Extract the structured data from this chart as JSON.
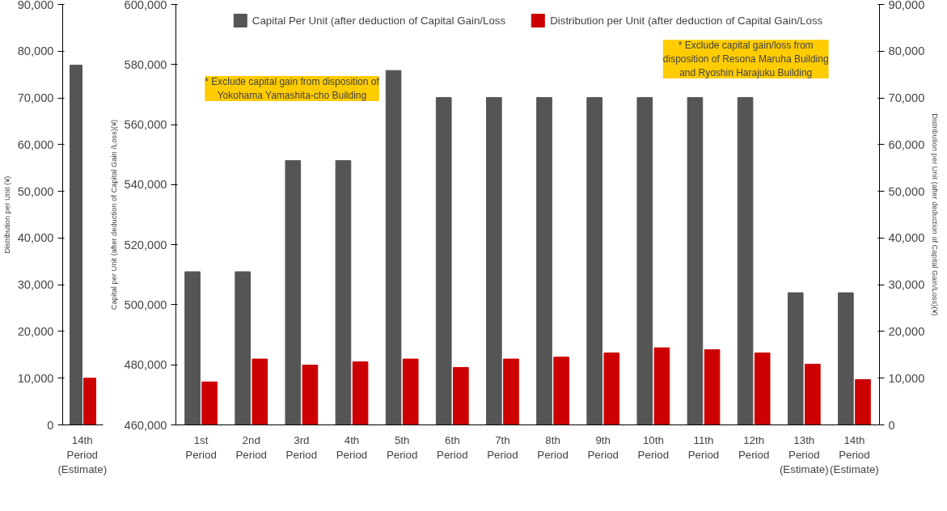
{
  "chart_data": [
    {
      "type": "bar",
      "ylabel": "Distribution per Unit (¥)",
      "categories": [
        "14th\nPeriod\n(Estimate)"
      ],
      "series": [
        {
          "color": "#555555",
          "values": [
            77000
          ]
        },
        {
          "color": "#cc0000",
          "values": [
            10000
          ]
        }
      ],
      "ylim": [
        0,
        90000
      ],
      "yticks": [
        {
          "value": 0,
          "label": "0"
        },
        {
          "value": 10000,
          "label": "10,000"
        },
        {
          "value": 20000,
          "label": "20,000"
        },
        {
          "value": 30000,
          "label": "30,000"
        },
        {
          "value": 40000,
          "label": "40,000"
        },
        {
          "value": 50000,
          "label": "50,000"
        },
        {
          "value": 60000,
          "label": "60,000"
        },
        {
          "value": 70000,
          "label": "70,000"
        },
        {
          "value": 80000,
          "label": "80,000"
        },
        {
          "value": 90000,
          "label": "90,000"
        }
      ],
      "grid": false,
      "legend": false
    },
    {
      "type": "bar",
      "ylabel": "Capital per Unit (after deduction of Capital Gain /Loss)(¥)",
      "y2label": "Distribution per Unit (after deduction of Capital Gain/Loss)(¥)",
      "categories": [
        "1st\nPeriod",
        "2nd\nPeriod",
        "3rd\nPeriod",
        "4th\nPeriod",
        "5th\nPeriod",
        "6th\nPeriod",
        "7th\nPeriod",
        "8th\nPeriod",
        "9th\nPeriod",
        "10th\nPeriod",
        "11th\nPeriod",
        "12th\nPeriod",
        "13th\nPeriod\n(Estimate)",
        "14th\nPeriod\n(Estimate)"
      ],
      "series": [
        {
          "name": "Capital Per Unit (after deduction of Capital Gain/Loss",
          "color": "#555555",
          "values": [
            511000,
            511000,
            548000,
            548000,
            578000,
            569000,
            569000,
            569000,
            569000,
            569000,
            569000,
            569000,
            504000,
            504000
          ]
        },
        {
          "name": "Distribution per Unit (after deduction of Capital Gain/Loss",
          "color": "#cc0000",
          "axis": "y2",
          "values": [
            9200,
            14100,
            12800,
            13500,
            14100,
            12300,
            14100,
            14500,
            15400,
            16500,
            16100,
            15400,
            13000,
            9700
          ]
        }
      ],
      "ylim": [
        460000,
        600000
      ],
      "yticks": [
        {
          "value": 460000,
          "label": "460,000"
        },
        {
          "value": 480000,
          "label": "480,000"
        },
        {
          "value": 500000,
          "label": "500,000"
        },
        {
          "value": 520000,
          "label": "520,000"
        },
        {
          "value": 540000,
          "label": "540,000"
        },
        {
          "value": 560000,
          "label": "560,000"
        },
        {
          "value": 580000,
          "label": "580,000"
        },
        {
          "value": 600000,
          "label": "600,000"
        }
      ],
      "y2lim": [
        0,
        90000
      ],
      "y2ticks": [
        {
          "value": 0,
          "label": "0"
        },
        {
          "value": 10000,
          "label": "10,000"
        },
        {
          "value": 20000,
          "label": "20,000"
        },
        {
          "value": 30000,
          "label": "30,000"
        },
        {
          "value": 40000,
          "label": "40,000"
        },
        {
          "value": 50000,
          "label": "50,000"
        },
        {
          "value": 60000,
          "label": "60,000"
        },
        {
          "value": 70000,
          "label": "70,000"
        },
        {
          "value": 80000,
          "label": "80,000"
        },
        {
          "value": 90000,
          "label": "90,000"
        }
      ],
      "annotations": [
        "* Exclude capital gain from disposition of\nYokohama Yamashita-cho Building",
        "* Exclude capital gain/loss from\ndisposition of Resona Maruha Building\nand Ryoshin Harajuku Building"
      ],
      "grid": false,
      "legend": "top"
    }
  ]
}
